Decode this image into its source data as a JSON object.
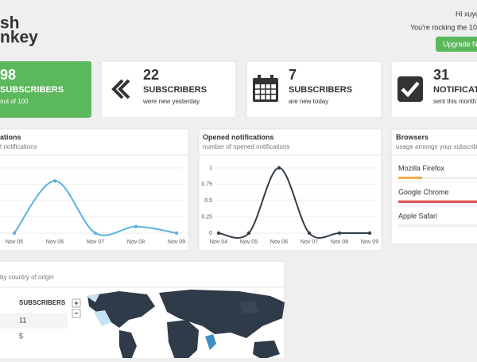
{
  "header": {
    "logo": [
      "sh",
      "nkey"
    ],
    "greeting": "Hi xuyu",
    "plan": "You're rocking the 100",
    "button": "Upgrade No"
  },
  "cards": [
    {
      "value": 98,
      "label": "SUBSCRIBERS",
      "note": "out of 100"
    },
    {
      "value": 22,
      "label": "SUBSCRIBERS",
      "note": "were new yesterday"
    },
    {
      "value": 7,
      "label": "SUBSCRIBERS",
      "note": "are new today"
    },
    {
      "value": 31,
      "label": "NOTIFICATI",
      "note": "sent this month"
    }
  ],
  "charts": [
    {
      "type": "line",
      "title": "ations",
      "subtitle": "t notifications",
      "categories": [
        "Nov 05",
        "Nov 06",
        "Nov 07",
        "Nov 08",
        "Nov 09"
      ],
      "values": [
        0,
        0.8,
        0,
        0.1,
        0
      ],
      "color": "#5ab4dc",
      "ylim": [
        0,
        1
      ],
      "yticks": [
        0,
        0.25,
        0.5,
        0.75,
        1
      ],
      "tick_labels": false
    },
    {
      "type": "line",
      "title": "Opened notifications",
      "subtitle": "number of opened notifications",
      "categories": [
        "Nov 04",
        "Nov 05",
        "Nov 06",
        "Nov 07",
        "Nov 08",
        "Nov 09"
      ],
      "values": [
        0,
        0,
        1,
        0,
        0,
        0
      ],
      "color": "#333d47",
      "ylim": [
        0,
        1
      ],
      "yticks": [
        0,
        0.25,
        0.5,
        0.75,
        1
      ],
      "tick_labels": true
    }
  ],
  "browsers": {
    "title": "Browsers",
    "subtitle": "usage amongs your subscribe",
    "items": [
      {
        "name": "Mozilla Firefox",
        "share": 25,
        "color": "#f0ad4e"
      },
      {
        "name": "Google Chrome",
        "share": 100,
        "color": "#d9534f"
      },
      {
        "name": "Apple Safari",
        "share": 0,
        "color": "#5bc0de"
      }
    ]
  },
  "map": {
    "title": "by country of origin",
    "column": "SUBSCRIBERS",
    "rows": [
      11,
      5
    ],
    "zoom": [
      "+",
      "−"
    ]
  }
}
